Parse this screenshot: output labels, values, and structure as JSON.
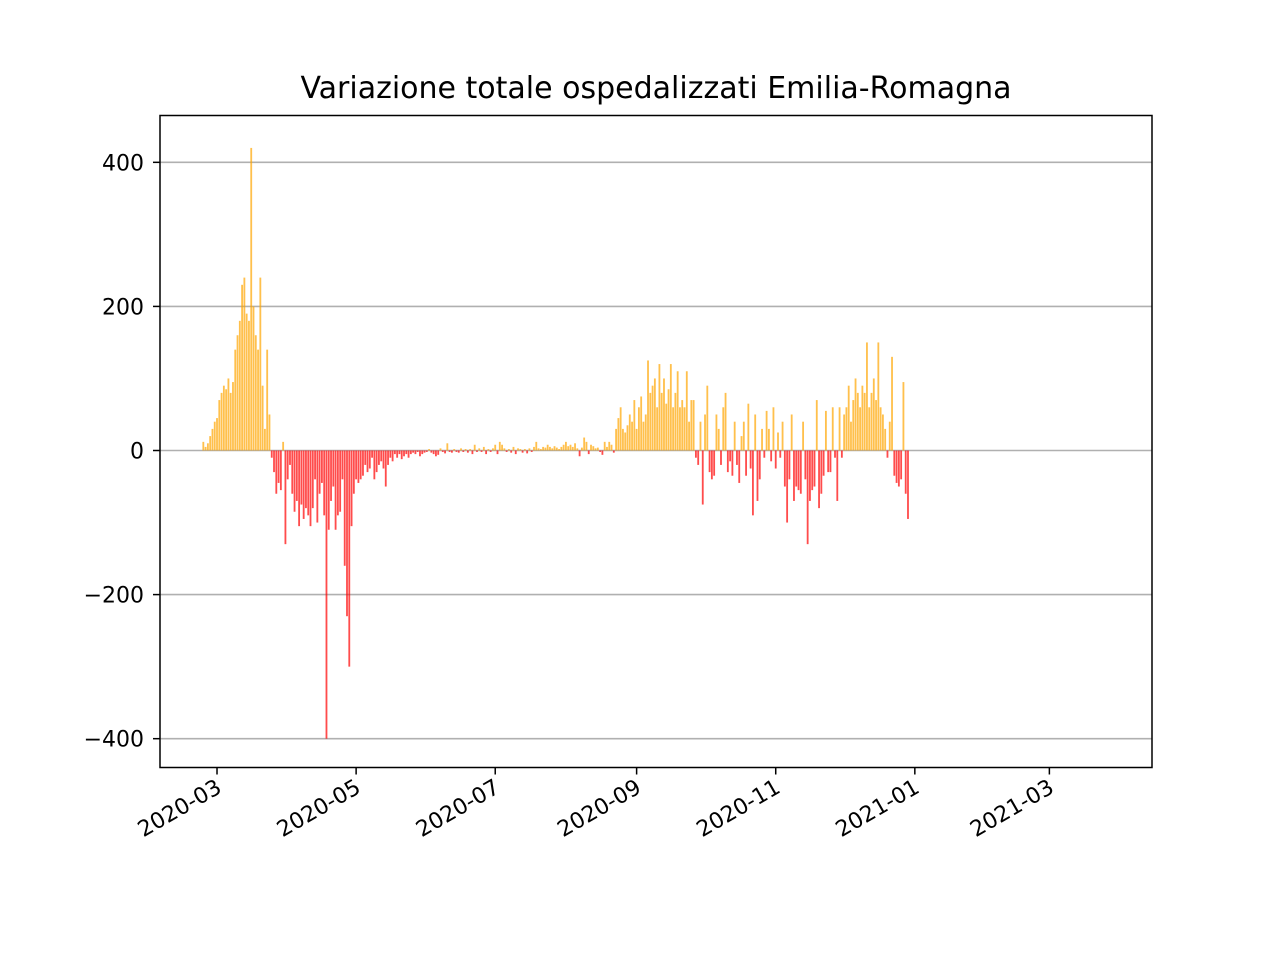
{
  "chart_data": {
    "type": "bar",
    "title": "Variazione totale ospedalizzati Emilia-Romagna",
    "xlabel": "",
    "ylabel": "",
    "x_range": [
      "2020-02-05",
      "2021-04-15"
    ],
    "ylim": [
      -440,
      465
    ],
    "y_ticks": [
      400,
      200,
      0,
      -200,
      -400
    ],
    "y_tick_labels": [
      "400",
      "200",
      "0",
      "−200",
      "−400"
    ],
    "x_ticks": [
      "2020-03-01",
      "2020-05-01",
      "2020-07-01",
      "2020-09-01",
      "2020-11-01",
      "2021-01-01",
      "2021-03-01"
    ],
    "x_tick_labels": [
      "2020-03",
      "2020-05",
      "2020-07",
      "2020-09",
      "2020-11",
      "2021-01",
      "2021-03"
    ],
    "grid": "horizontal",
    "legend": "none",
    "colors": {
      "positive": "#ffa500",
      "negative": "#ff0000",
      "grid": "#b0b0b0",
      "axes": "#000000"
    },
    "start_date": "2020-02-24",
    "values": [
      12,
      5,
      10,
      20,
      30,
      40,
      45,
      70,
      80,
      90,
      85,
      100,
      80,
      95,
      140,
      160,
      180,
      230,
      240,
      190,
      180,
      420,
      200,
      160,
      140,
      240,
      90,
      30,
      140,
      50,
      -10,
      -30,
      -60,
      -45,
      -55,
      12,
      -130,
      -40,
      -20,
      -60,
      -85,
      -70,
      -105,
      -75,
      -95,
      -80,
      -90,
      -105,
      -80,
      -40,
      -100,
      -60,
      -45,
      -90,
      -400,
      -110,
      -70,
      -50,
      -110,
      -90,
      -85,
      -40,
      -160,
      -230,
      -300,
      -105,
      -60,
      -40,
      -45,
      -40,
      -35,
      -20,
      -30,
      -25,
      -10,
      -40,
      -30,
      -20,
      -15,
      -25,
      -50,
      -20,
      -10,
      -15,
      -5,
      -10,
      -5,
      -12,
      -8,
      -5,
      -10,
      -5,
      -3,
      -5,
      -2,
      -8,
      -5,
      -3,
      -2,
      2,
      -3,
      -5,
      -8,
      -6,
      3,
      -2,
      -4,
      10,
      -2,
      -3,
      2,
      -2,
      -3,
      3,
      -2,
      2,
      -3,
      2,
      -5,
      8,
      -2,
      3,
      -2,
      5,
      -5,
      2,
      -2,
      3,
      8,
      -5,
      12,
      8,
      3,
      -2,
      2,
      -3,
      5,
      -5,
      3,
      2,
      -3,
      2,
      -4,
      3,
      -2,
      5,
      12,
      3,
      2,
      5,
      4,
      8,
      5,
      3,
      6,
      4,
      2,
      5,
      8,
      12,
      6,
      8,
      5,
      10,
      3,
      -8,
      4,
      18,
      12,
      -5,
      8,
      6,
      3,
      4,
      -2,
      -6,
      12,
      5,
      12,
      8,
      -3,
      30,
      45,
      60,
      30,
      25,
      35,
      50,
      40,
      70,
      30,
      60,
      75,
      40,
      50,
      125,
      80,
      90,
      100,
      60,
      120,
      80,
      100,
      65,
      85,
      120,
      60,
      80,
      110,
      60,
      70,
      60,
      110,
      40,
      70,
      70,
      -10,
      -20,
      40,
      -75,
      50,
      90,
      -30,
      -40,
      -35,
      50,
      30,
      -20,
      60,
      80,
      -30,
      -15,
      -35,
      40,
      -20,
      -45,
      20,
      40,
      -35,
      65,
      -25,
      -90,
      50,
      -70,
      -40,
      30,
      -10,
      55,
      30,
      -15,
      60,
      -25,
      25,
      -10,
      40,
      -50,
      -100,
      -40,
      50,
      -70,
      -50,
      -55,
      -60,
      40,
      -40,
      -130,
      -70,
      -55,
      -50,
      70,
      -80,
      -60,
      -35,
      55,
      -30,
      -30,
      60,
      -10,
      -70,
      60,
      -10,
      50,
      60,
      90,
      40,
      70,
      100,
      80,
      60,
      90,
      80,
      150,
      60,
      80,
      100,
      70,
      150,
      60,
      50,
      30,
      -10,
      40,
      130,
      -35,
      -45,
      -50,
      -40,
      95,
      -60,
      -95
    ]
  }
}
